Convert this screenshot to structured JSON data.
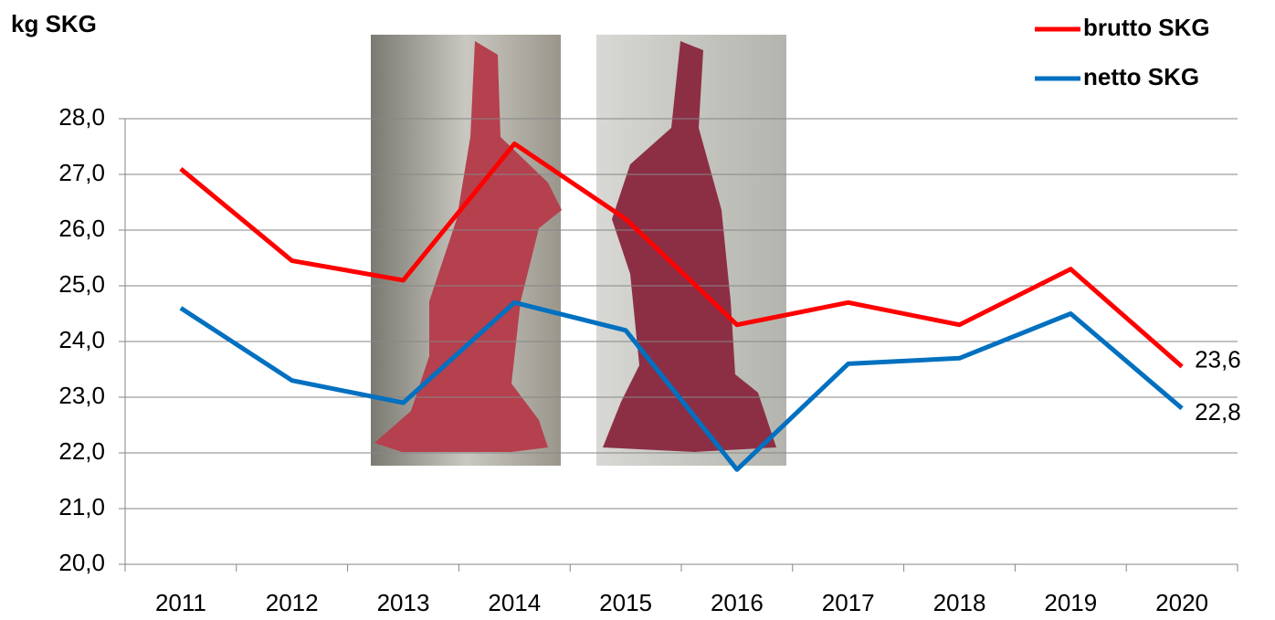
{
  "chart_data": {
    "type": "line",
    "y_label": "kg SKG",
    "categories": [
      "2011",
      "2012",
      "2013",
      "2014",
      "2015",
      "2016",
      "2017",
      "2018",
      "2019",
      "2020"
    ],
    "series": [
      {
        "name": "brutto SKG",
        "color": "#ff0000",
        "values": [
          27.1,
          25.45,
          25.1,
          27.55,
          26.2,
          24.3,
          24.7,
          24.3,
          25.3,
          23.55
        ],
        "value_labels": [
          null,
          null,
          null,
          null,
          null,
          null,
          null,
          null,
          null,
          "23,6"
        ]
      },
      {
        "name": "netto SKG",
        "color": "#0070c0",
        "values": [
          24.6,
          23.3,
          22.9,
          24.7,
          24.2,
          21.7,
          23.6,
          23.7,
          24.5,
          22.8
        ],
        "value_labels": [
          null,
          null,
          null,
          null,
          null,
          null,
          null,
          null,
          null,
          "22,8"
        ]
      }
    ],
    "ylim": [
      20,
      28
    ],
    "yticks": [
      {
        "value": 20,
        "label": "20,0"
      },
      {
        "value": 21,
        "label": "21,0"
      },
      {
        "value": 22,
        "label": "22,0"
      },
      {
        "value": 23,
        "label": "23,0"
      },
      {
        "value": 24,
        "label": "24,0"
      },
      {
        "value": 25,
        "label": "25,0"
      },
      {
        "value": 26,
        "label": "26,0"
      },
      {
        "value": 27,
        "label": "27,0"
      },
      {
        "value": 28,
        "label": "28,0"
      }
    ],
    "grid": true,
    "legend": "top-right"
  }
}
